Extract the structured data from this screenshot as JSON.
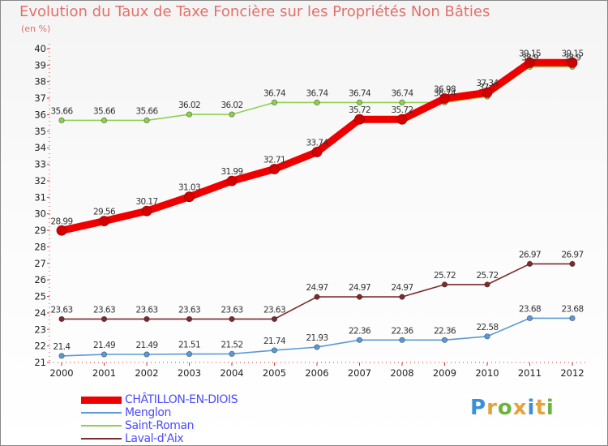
{
  "title": "Evolution du Taux de Taxe Foncière sur les Propriétés Non Bâties",
  "unit_label": "(en %)",
  "logo": {
    "text": "Proxiti",
    "letters": [
      "P",
      "r",
      "o",
      "x",
      "i",
      "t",
      "i"
    ],
    "colors": [
      "#3b8fd6",
      "#e8a13a",
      "#6bb33a",
      "#e8a13a",
      "#3b8fd6",
      "#e8a13a",
      "#6bb33a"
    ]
  },
  "chart_data": {
    "type": "line",
    "x": [
      2000,
      2001,
      2002,
      2003,
      2004,
      2005,
      2006,
      2007,
      2008,
      2009,
      2010,
      2011,
      2012
    ],
    "ylim": [
      21,
      40
    ],
    "yticks": [
      21,
      22,
      23,
      24,
      25,
      26,
      27,
      28,
      29,
      30,
      31,
      32,
      33,
      34,
      35,
      36,
      37,
      38,
      39,
      40
    ],
    "grid": false,
    "legend_position": "bottom-left",
    "series": [
      {
        "name": "CHÂTILLON-EN-DIOIS",
        "color": "#ee0000",
        "text_color": "#4c4cff",
        "bold": true,
        "values": [
          28.99,
          29.56,
          30.17,
          31.03,
          31.99,
          32.71,
          33.74,
          35.72,
          35.72,
          36.98,
          37.34,
          39.15,
          39.15
        ],
        "labels": [
          "28.99",
          "29.56",
          "30.17",
          "31.03",
          "31.99",
          "32.71",
          "33.74",
          "35.72",
          "35.72",
          "36.98",
          "37.34",
          "39.15",
          "39.15"
        ]
      },
      {
        "name": "Menglon",
        "color": "#5b9ad5",
        "text_color": "#4c4cff",
        "bold": false,
        "values": [
          21.4,
          21.49,
          21.49,
          21.51,
          21.52,
          21.74,
          21.93,
          22.36,
          22.36,
          22.36,
          22.58,
          23.68,
          23.68
        ],
        "labels": [
          "21.4",
          "21.49",
          "21.49",
          "21.51",
          "21.52",
          "21.74",
          "21.93",
          "22.36",
          "22.36",
          "22.36",
          "22.58",
          "23.68",
          "23.68"
        ]
      },
      {
        "name": "Saint-Roman",
        "color": "#8fd14f",
        "text_color": "#4c4cff",
        "bold": false,
        "values": [
          35.66,
          35.66,
          35.66,
          36.02,
          36.02,
          36.74,
          36.74,
          36.74,
          36.74,
          36.74,
          37.1,
          38.9,
          38.9
        ],
        "labels": [
          "35.66",
          "35.66",
          "35.66",
          "36.02",
          "36.02",
          "36.74",
          "36.74",
          "36.74",
          "36.74",
          "36.74",
          "37.1",
          "38.9",
          "38.9"
        ]
      },
      {
        "name": "Laval-d'Aix",
        "color": "#7b2c2c",
        "text_color": "#4c4cff",
        "bold": false,
        "values": [
          23.63,
          23.63,
          23.63,
          23.63,
          23.63,
          23.63,
          24.97,
          24.97,
          24.97,
          25.72,
          25.72,
          26.97,
          26.97
        ],
        "labels": [
          "23.63",
          "23.63",
          "23.63",
          "23.63",
          "23.63",
          "23.63",
          "24.97",
          "24.97",
          "24.97",
          "25.72",
          "25.72",
          "26.97",
          "26.97"
        ]
      }
    ]
  }
}
